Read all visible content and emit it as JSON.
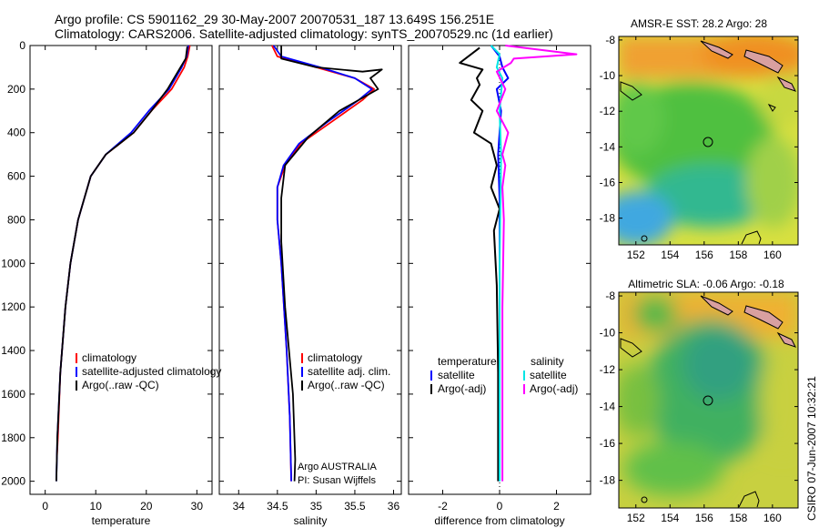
{
  "header": {
    "line1": "Argo profile: CS 5901162_29 30-May-2007 20070531_187 13.649S 156.251E",
    "line2": "Climatology: CARS2006. Satellite-adjusted climatology: synTS_20070529.nc (1d earlier)"
  },
  "footer": {
    "stamp": "CSIRO 07-Jun-2007 10:32:21"
  },
  "colors": {
    "climatology": "#ff0000",
    "satellite": "#0000ff",
    "argo": "#000000",
    "cyan": "#00e5e5",
    "magenta": "#ff00ff"
  },
  "chart_data": [
    {
      "type": "line",
      "xlabel": "temperature",
      "xlim": [
        -3,
        33
      ],
      "xticks": [
        0,
        10,
        20,
        30
      ],
      "ylim": [
        2060,
        0
      ],
      "yticks": [
        0,
        200,
        400,
        600,
        800,
        1000,
        1200,
        1400,
        1600,
        1800,
        2000
      ],
      "legend": {
        "placement": "bottom-right",
        "entries": [
          "climatology",
          "satellite-adjusted climatology",
          "Argo(..raw -QC)"
        ]
      },
      "series": [
        {
          "name": "climatology",
          "color": "red",
          "x": [
            28.6,
            28.2,
            27.5,
            25.0,
            21.0,
            17.5,
            12.0,
            9.0,
            6.5,
            5.0,
            4.0,
            3.0,
            2.5,
            2.3
          ],
          "y": [
            0,
            50,
            100,
            200,
            300,
            400,
            500,
            600,
            800,
            1000,
            1200,
            1500,
            1800,
            1900
          ]
        },
        {
          "name": "satellite-adjusted climatology",
          "color": "blue",
          "x": [
            28.3,
            28.0,
            27.0,
            24.5,
            20.5,
            17.0,
            12.0,
            9.0,
            6.5,
            5.0,
            4.0,
            3.0,
            2.4,
            2.2
          ],
          "y": [
            0,
            50,
            100,
            200,
            300,
            400,
            500,
            600,
            800,
            1000,
            1200,
            1500,
            1800,
            2000
          ]
        },
        {
          "name": "Argo(..raw -QC)",
          "color": "black",
          "x": [
            28.1,
            27.8,
            26.5,
            24.2,
            21.0,
            17.5,
            12.0,
            9.0,
            6.5,
            5.0,
            4.0,
            3.0,
            2.4,
            2.2
          ],
          "y": [
            5,
            60,
            110,
            200,
            300,
            400,
            500,
            600,
            800,
            1000,
            1200,
            1500,
            1800,
            2000
          ]
        }
      ]
    },
    {
      "type": "line",
      "xlabel": "salinity",
      "xlim": [
        33.75,
        36.1
      ],
      "xticks": [
        34,
        34.5,
        35,
        35.5,
        36
      ],
      "ylim": [
        2060,
        0
      ],
      "yticks": [
        0,
        200,
        400,
        600,
        800,
        1000,
        1200,
        1400,
        1600,
        1800,
        2000
      ],
      "legend": {
        "placement": "bottom-right",
        "entries": [
          "climatology",
          "satellite adj. clim.",
          "Argo(..raw -QC)"
        ]
      },
      "annotation": {
        "line1": "Argo AUSTRALIA",
        "line2": "PI: Susan Wijffels"
      },
      "series": [
        {
          "name": "climatology",
          "color": "red",
          "x": [
            34.43,
            34.5,
            35.0,
            35.5,
            35.75,
            35.6,
            35.2,
            34.8,
            34.6,
            34.5,
            34.5,
            34.55,
            34.62,
            34.66,
            34.68
          ],
          "y": [
            0,
            50,
            100,
            150,
            200,
            250,
            350,
            450,
            550,
            650,
            800,
            1000,
            1400,
            1700,
            2000
          ]
        },
        {
          "name": "satellite adj. clim.",
          "color": "blue",
          "x": [
            34.45,
            34.55,
            35.05,
            35.5,
            35.72,
            35.55,
            35.15,
            34.78,
            34.58,
            34.5,
            34.5,
            34.55,
            34.62,
            34.66,
            34.68
          ],
          "y": [
            0,
            50,
            100,
            150,
            200,
            250,
            350,
            450,
            550,
            650,
            800,
            1000,
            1400,
            1700,
            2000
          ]
        },
        {
          "name": "Argo(..raw -QC)",
          "color": "black",
          "x": [
            34.55,
            34.55,
            35.0,
            35.6,
            35.85,
            35.7,
            35.8,
            35.3,
            34.9,
            34.6,
            34.55,
            34.55,
            34.6,
            34.7,
            34.73,
            34.72
          ],
          "y": [
            0,
            60,
            100,
            120,
            110,
            150,
            200,
            300,
            420,
            550,
            700,
            900,
            1200,
            1600,
            1900,
            2000
          ]
        }
      ]
    },
    {
      "type": "line",
      "xlabel": "difference from climatology",
      "xlim": [
        -3.2,
        3.2
      ],
      "xticks": [
        -2,
        0,
        2
      ],
      "ylim": [
        2060,
        0
      ],
      "yticks": [
        0,
        200,
        400,
        600,
        800,
        1000,
        1200,
        1400,
        1600,
        1800,
        2000
      ],
      "legend": {
        "placement": "bottom",
        "columns": [
          {
            "heading": "temperature",
            "entries": [
              "satellite",
              "Argo(-adj)"
            ]
          },
          {
            "heading": "salinity",
            "entries": [
              "satellite",
              "Argo(-adj)"
            ]
          }
        ]
      },
      "series": [
        {
          "name": "temperature satellite",
          "color": "blue",
          "x": [
            -0.3,
            0.0,
            0.1,
            0.3,
            -0.1,
            0.05,
            0.0,
            -0.05,
            0.0,
            0.0,
            0.0
          ],
          "y": [
            0,
            50,
            100,
            150,
            200,
            300,
            400,
            500,
            700,
            1000,
            2000
          ]
        },
        {
          "name": "temperature Argo(-adj)",
          "color": "black",
          "x": [
            -0.7,
            -1.4,
            -0.6,
            -0.8,
            -0.7,
            -1.0,
            -0.6,
            -0.9,
            -0.3,
            -0.2,
            -0.1,
            -0.3,
            0.0,
            -0.2,
            -0.1,
            -0.05,
            -0.05
          ],
          "y": [
            10,
            80,
            110,
            150,
            180,
            250,
            300,
            400,
            450,
            500,
            550,
            650,
            750,
            850,
            1100,
            1500,
            2000
          ]
        },
        {
          "name": "salinity satellite",
          "color": "cyan",
          "x": [
            -0.3,
            0.0,
            -0.1,
            0.1,
            0.0,
            0.05,
            0.0,
            0.0
          ],
          "y": [
            0,
            40,
            100,
            150,
            300,
            500,
            1000,
            2000
          ]
        },
        {
          "name": "salinity Argo(-adj)",
          "color": "magenta",
          "x": [
            0.2,
            2.7,
            0.5,
            0.4,
            -0.1,
            0.2,
            -0.1,
            0.3,
            0.1,
            0.2,
            0.1,
            0.15,
            0.1,
            0.1
          ],
          "y": [
            0,
            40,
            60,
            80,
            120,
            200,
            300,
            400,
            500,
            550,
            650,
            800,
            1200,
            2000
          ]
        }
      ]
    },
    {
      "type": "heatmap",
      "title": "AMSR-E SST: 28.2  Argo: 28",
      "xlim": [
        151,
        161.5
      ],
      "xticks": [
        152,
        154,
        156,
        158,
        160
      ],
      "ylim": [
        -19.5,
        -7.8
      ],
      "yticks": [
        -8,
        -10,
        -12,
        -14,
        -16,
        -18
      ],
      "marker": {
        "x": 156.25,
        "y": -13.65
      }
    },
    {
      "type": "heatmap",
      "title": "Altimetric SLA: -0.06  Argo: -0.18",
      "xlim": [
        151,
        161.5
      ],
      "xticks": [
        152,
        154,
        156,
        158,
        160
      ],
      "ylim": [
        -19.5,
        -7.8
      ],
      "yticks": [
        -8,
        -10,
        -12,
        -14,
        -16,
        -18
      ],
      "marker": {
        "x": 156.25,
        "y": -13.65
      }
    }
  ]
}
